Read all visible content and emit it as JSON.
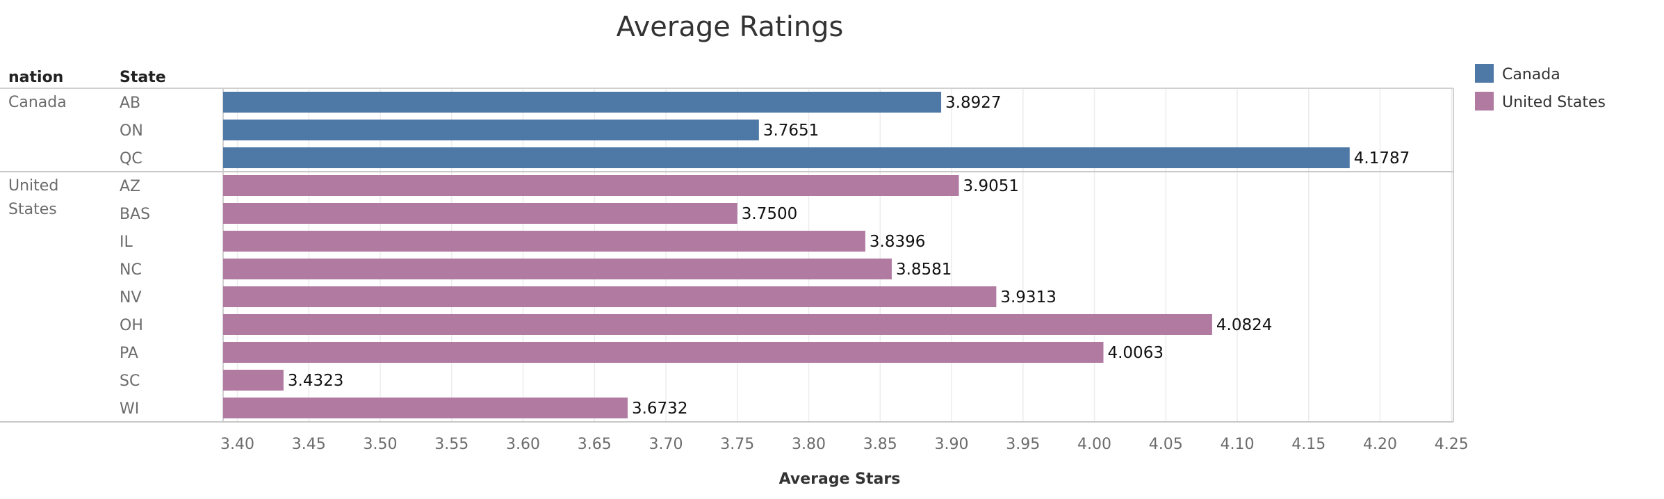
{
  "chart_data": {
    "type": "bar",
    "orientation": "horizontal",
    "title": "Average Ratings",
    "row_headers": [
      "nation",
      "State"
    ],
    "xlabel": "Average Stars",
    "xlim": [
      3.39,
      4.26
    ],
    "x_ticks": [
      "3.40",
      "3.45",
      "3.50",
      "3.55",
      "3.60",
      "3.65",
      "3.70",
      "3.75",
      "3.80",
      "3.85",
      "3.90",
      "3.95",
      "4.00",
      "4.05",
      "4.10",
      "4.15",
      "4.20",
      "4.25"
    ],
    "grid": true,
    "legend_position": "right",
    "groups": [
      {
        "name": "Canada",
        "label_lines": [
          "Canada"
        ],
        "color": "#4e79a7",
        "states": [
          "AB",
          "ON",
          "QC"
        ],
        "values": [
          3.8927,
          3.7651,
          4.1787
        ],
        "value_labels": [
          "3.8927",
          "3.7651",
          "4.1787"
        ]
      },
      {
        "name": "United States",
        "label_lines": [
          "United",
          "States"
        ],
        "color": "#b07aa1",
        "states": [
          "AZ",
          "BAS",
          "IL",
          "NC",
          "NV",
          "OH",
          "PA",
          "SC",
          "WI"
        ],
        "values": [
          3.9051,
          3.75,
          3.8396,
          3.8581,
          3.9313,
          4.0824,
          4.0063,
          3.4323,
          3.6732
        ],
        "value_labels": [
          "3.9051",
          "3.7500",
          "3.8396",
          "3.8581",
          "3.9313",
          "4.0824",
          "4.0063",
          "3.4323",
          "3.6732"
        ]
      }
    ],
    "legend": [
      {
        "label": "Canada",
        "color": "#4e79a7"
      },
      {
        "label": "United States",
        "color": "#b07aa1"
      }
    ]
  }
}
